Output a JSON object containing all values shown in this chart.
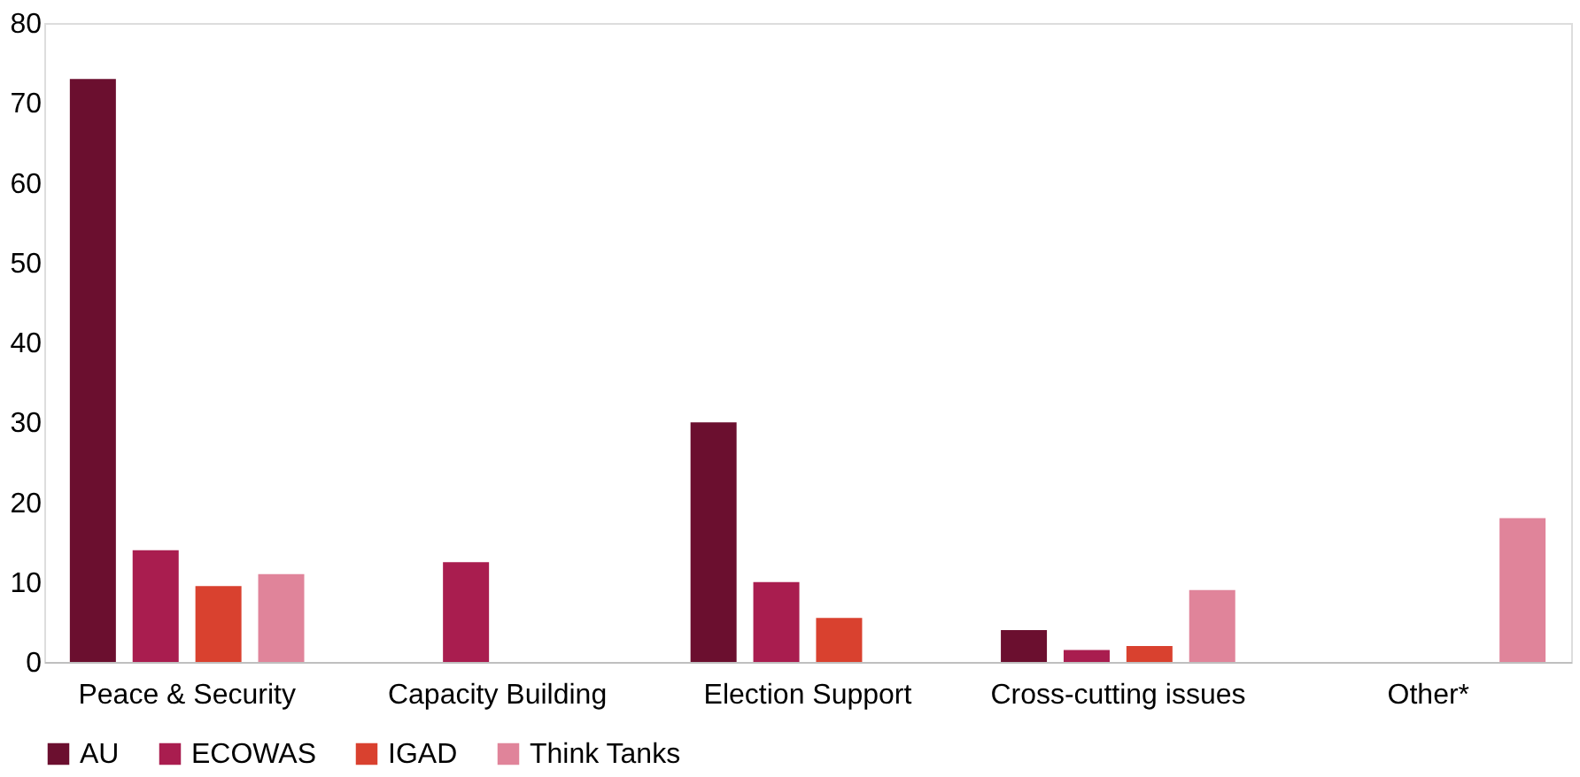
{
  "chart_data": {
    "type": "bar",
    "categories": [
      "Peace & Security",
      "Capacity Building",
      "Election Support",
      "Cross-cutting issues",
      "Other*"
    ],
    "series": [
      {
        "name": "AU",
        "color": "#6b0f2f",
        "values": [
          73,
          null,
          30,
          4,
          null
        ]
      },
      {
        "name": "ECOWAS",
        "color": "#a91d4f",
        "values": [
          14,
          12.5,
          10,
          1.5,
          null
        ]
      },
      {
        "name": "IGAD",
        "color": "#d9412f",
        "values": [
          9.5,
          null,
          5.5,
          2,
          null
        ]
      },
      {
        "name": "Think Tanks",
        "color": "#e0849a",
        "values": [
          11,
          null,
          null,
          9,
          18
        ]
      }
    ],
    "ylim": [
      0,
      80
    ],
    "yticks": [
      0,
      10,
      20,
      30,
      40,
      50,
      60,
      70,
      80
    ],
    "grid": false,
    "legend": "bottom"
  }
}
